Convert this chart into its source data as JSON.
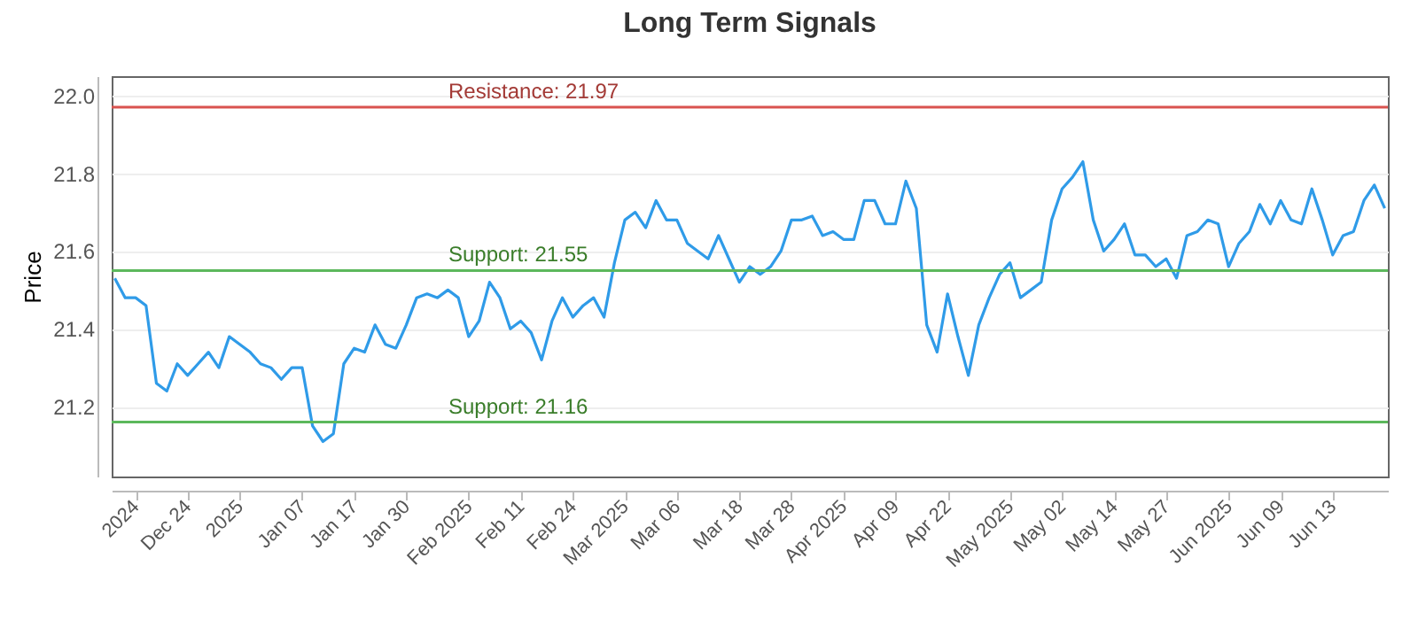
{
  "chart_data": {
    "type": "line",
    "title": "Long Term Signals",
    "ylabel": "Price",
    "categories": [
      null,
      null,
      "2024",
      null,
      null,
      null,
      null,
      "Dec 24",
      null,
      null,
      null,
      null,
      "2025",
      null,
      null,
      null,
      null,
      null,
      "Jan 07",
      null,
      null,
      null,
      null,
      "Jan 17",
      null,
      null,
      null,
      null,
      "Jan 30",
      null,
      null,
      null,
      null,
      null,
      "Feb 2025",
      null,
      null,
      null,
      null,
      "Feb 11",
      null,
      null,
      null,
      null,
      "Feb 24",
      null,
      null,
      null,
      null,
      "Mar 2025",
      null,
      null,
      null,
      null,
      "Mar 06",
      null,
      null,
      null,
      null,
      null,
      "Mar 18",
      null,
      null,
      null,
      null,
      "Mar 28",
      null,
      null,
      null,
      null,
      "Apr 2025",
      null,
      null,
      null,
      null,
      "Apr 09",
      null,
      null,
      null,
      null,
      "Apr 22",
      null,
      null,
      null,
      null,
      null,
      "May 2025",
      null,
      null,
      null,
      null,
      "May 02",
      null,
      null,
      null,
      null,
      "May 14",
      null,
      null,
      null,
      null,
      "May 27",
      null,
      null,
      null,
      null,
      null,
      "Jun 2025",
      null,
      null,
      null,
      null,
      "Jun 09",
      null,
      null,
      null,
      null,
      "Jun 13",
      null,
      null,
      null,
      null,
      null
    ],
    "series": [
      {
        "color": "#2f9be8",
        "values": [
          21.53,
          21.48,
          21.48,
          21.46,
          21.26,
          21.24,
          21.31,
          21.28,
          21.31,
          21.34,
          21.3,
          21.38,
          21.36,
          21.34,
          21.31,
          21.3,
          21.27,
          21.3,
          21.3,
          21.15,
          21.11,
          21.13,
          21.31,
          21.35,
          21.34,
          21.41,
          21.36,
          21.35,
          21.41,
          21.48,
          21.49,
          21.48,
          21.5,
          21.48,
          21.38,
          21.42,
          21.52,
          21.48,
          21.4,
          21.42,
          21.39,
          21.32,
          21.42,
          21.48,
          21.43,
          21.46,
          21.48,
          21.43,
          21.57,
          21.68,
          21.7,
          21.66,
          21.73,
          21.68,
          21.68,
          21.62,
          21.6,
          21.58,
          21.64,
          21.58,
          21.52,
          21.56,
          21.54,
          21.56,
          21.6,
          21.68,
          21.68,
          21.69,
          21.64,
          21.65,
          21.63,
          21.63,
          21.73,
          21.73,
          21.67,
          21.67,
          21.78,
          21.71,
          21.41,
          21.34,
          21.49,
          21.38,
          21.28,
          21.41,
          21.48,
          21.54,
          21.57,
          21.48,
          21.5,
          21.52,
          21.68,
          21.76,
          21.79,
          21.83,
          21.68,
          21.6,
          21.63,
          21.67,
          21.59,
          21.59,
          21.56,
          21.58,
          21.53,
          21.64,
          21.65,
          21.68,
          21.67,
          21.56,
          21.62,
          21.65,
          21.72,
          21.67,
          21.73,
          21.68,
          21.67,
          21.76,
          21.68,
          21.59,
          21.64,
          21.65,
          21.73,
          21.77,
          21.71
        ]
      }
    ],
    "ylim": [
      21.02,
      22.05
    ],
    "yticks": [
      {
        "value": 21.2,
        "label": "21.2"
      },
      {
        "value": 21.4,
        "label": "21.4"
      },
      {
        "value": 21.6,
        "label": "21.6"
      },
      {
        "value": 21.8,
        "label": "21.8"
      },
      {
        "value": 22,
        "label": "22.0"
      }
    ],
    "grid": "y",
    "marker": "none",
    "line_style": "solid",
    "ref_lines": [
      {
        "axis": "y",
        "value": 21.97,
        "label": "Resistance: 21.97",
        "color": "#d9534f"
      },
      {
        "axis": "y",
        "value": 21.55,
        "label": "Support: 21.55",
        "color": "#5cb85c"
      },
      {
        "axis": "y",
        "value": 21.16,
        "label": "Support: 21.16",
        "color": "#5cb85c"
      }
    ]
  }
}
